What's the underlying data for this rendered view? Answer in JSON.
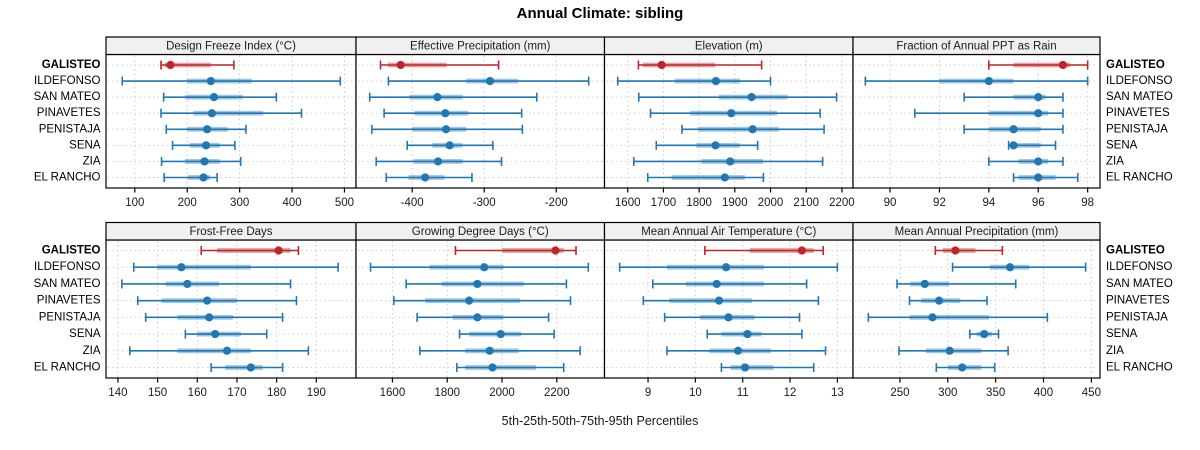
{
  "title": "Annual Climate: sibling",
  "caption": "5th-25th-50th-75th-95th Percentiles",
  "stations": [
    "GALISTEO",
    "ILDEFONSO",
    "SAN MATEO",
    "PINAVETES",
    "PENISTAJA",
    "SENA",
    "ZIA",
    "EL RANCHO"
  ],
  "highlight_station": "GALISTEO",
  "percentile_labels": [
    "5th",
    "25th",
    "50th",
    "75th",
    "95th"
  ],
  "colors": {
    "highlight": "#bf2427",
    "normal": "#1f77b4",
    "strip_bg": "#f0f0f0",
    "panel_border": "#000000",
    "grid": "#c9c9c9",
    "text": "#1a1a1a"
  },
  "chart_data": {
    "type": "dotplot",
    "subtype": "percentile-whisker-panels",
    "layout": "2 rows x 4 cols",
    "value_order": [
      "p5",
      "p25",
      "p50",
      "p75",
      "p95"
    ],
    "panels": [
      {
        "title": "Design Freeze Index (°C)",
        "row": 0,
        "col": 0,
        "xlim": [
          45,
          522
        ],
        "ticks": [
          100,
          200,
          300,
          400,
          500
        ],
        "series": [
          {
            "name": "GALISTEO",
            "values": [
              150,
              157,
              168,
              245,
              289
            ]
          },
          {
            "name": "ILDEFONSO",
            "values": [
              76,
              200,
              245,
              323,
              492
            ]
          },
          {
            "name": "SAN MATEO",
            "values": [
              155,
              196,
              251,
              306,
              370
            ]
          },
          {
            "name": "PINAVETES",
            "values": [
              150,
              212,
              247,
              345,
              418
            ]
          },
          {
            "name": "PENISTAJA",
            "values": [
              160,
              200,
              238,
              277,
              312
            ]
          },
          {
            "name": "SENA",
            "values": [
              172,
              205,
              236,
              262,
              291
            ]
          },
          {
            "name": "ZIA",
            "values": [
              151,
              196,
              233,
              262,
              302
            ]
          },
          {
            "name": "EL RANCHO",
            "values": [
              156,
              201,
              231,
              243,
              257
            ]
          }
        ]
      },
      {
        "title": "Effective Precipitation (mm)",
        "row": 0,
        "col": 1,
        "xlim": [
          -478,
          -133
        ],
        "ticks": [
          -400,
          -300,
          -200
        ],
        "series": [
          {
            "name": "GALISTEO",
            "values": [
              -444,
              -434,
              -416,
              -352,
              -280
            ]
          },
          {
            "name": "ILDEFONSO",
            "values": [
              -433,
              -325,
              -292,
              -253,
              -155
            ]
          },
          {
            "name": "SAN MATEO",
            "values": [
              -459,
              -404,
              -365,
              -330,
              -227
            ]
          },
          {
            "name": "PINAVETES",
            "values": [
              -439,
              -397,
              -354,
              -322,
              -248
            ]
          },
          {
            "name": "PENISTAJA",
            "values": [
              -456,
              -400,
              -353,
              -325,
              -247
            ]
          },
          {
            "name": "SENA",
            "values": [
              -407,
              -372,
              -348,
              -330,
              -288
            ]
          },
          {
            "name": "ZIA",
            "values": [
              -450,
              -398,
              -364,
              -330,
              -276
            ]
          },
          {
            "name": "EL RANCHO",
            "values": [
              -436,
              -405,
              -382,
              -355,
              -317
            ]
          }
        ]
      },
      {
        "title": "Elevation (m)",
        "row": 0,
        "col": 2,
        "xlim": [
          1535,
          2231
        ],
        "ticks": [
          1600,
          1700,
          1800,
          1900,
          2000,
          2100,
          2200
        ],
        "series": [
          {
            "name": "GALISTEO",
            "values": [
              1630,
              1642,
              1695,
              1845,
              1975
            ]
          },
          {
            "name": "ILDEFONSO",
            "values": [
              1572,
              1732,
              1847,
              1914,
              2000
            ]
          },
          {
            "name": "SAN MATEO",
            "values": [
              1631,
              1855,
              1947,
              2048,
              2185
            ]
          },
          {
            "name": "PINAVETES",
            "values": [
              1664,
              1775,
              1890,
              2018,
              2139
            ]
          },
          {
            "name": "PENISTAJA",
            "values": [
              1752,
              1797,
              1950,
              2023,
              2150
            ]
          },
          {
            "name": "SENA",
            "values": [
              1680,
              1792,
              1846,
              1914,
              1964
            ]
          },
          {
            "name": "ZIA",
            "values": [
              1617,
              1806,
              1887,
              1979,
              2146
            ]
          },
          {
            "name": "EL RANCHO",
            "values": [
              1656,
              1723,
              1872,
              1928,
              1980
            ]
          }
        ]
      },
      {
        "title": "Fraction of Annual PPT as Rain",
        "row": 0,
        "col": 3,
        "xlim": [
          88.5,
          98.5
        ],
        "ticks": [
          90,
          92,
          94,
          96,
          98
        ],
        "series": [
          {
            "name": "GALISTEO",
            "values": [
              94,
              95,
              97,
              97.3,
              98
            ]
          },
          {
            "name": "ILDEFONSO",
            "values": [
              89,
              92,
              94,
              95,
              98
            ]
          },
          {
            "name": "SAN MATEO",
            "values": [
              93,
              95,
              96,
              96.3,
              97
            ]
          },
          {
            "name": "PINAVETES",
            "values": [
              91,
              94,
              96,
              96.4,
              97
            ]
          },
          {
            "name": "PENISTAJA",
            "values": [
              93,
              94,
              95,
              96.1,
              97
            ]
          },
          {
            "name": "SENA",
            "values": [
              94.8,
              94.9,
              95,
              96.1,
              96.7
            ]
          },
          {
            "name": "ZIA",
            "values": [
              94,
              95.2,
              96,
              96.4,
              97
            ]
          },
          {
            "name": "EL RANCHO",
            "values": [
              95,
              95.2,
              96,
              96.7,
              97.6
            ]
          }
        ]
      },
      {
        "title": "Frost-Free Days",
        "row": 1,
        "col": 0,
        "xlim": [
          137,
          200
        ],
        "ticks": [
          140,
          150,
          160,
          170,
          180,
          190
        ],
        "series": [
          {
            "name": "GALISTEO",
            "values": [
              161,
              165,
              180.5,
              183.5,
              185.5
            ]
          },
          {
            "name": "ILDEFONSO",
            "values": [
              144,
              150,
              156,
              173.5,
              195.5
            ]
          },
          {
            "name": "SAN MATEO",
            "values": [
              141,
              152,
              157.5,
              165.5,
              183.5
            ]
          },
          {
            "name": "PINAVETES",
            "values": [
              145,
              151,
              162.5,
              170,
              185
            ]
          },
          {
            "name": "PENISTAJA",
            "values": [
              147,
              155,
              163,
              169,
              181.5
            ]
          },
          {
            "name": "SENA",
            "values": [
              157,
              160,
              164.5,
              171,
              177.5
            ]
          },
          {
            "name": "ZIA",
            "values": [
              143,
              155,
              167.5,
              173.5,
              188
            ]
          },
          {
            "name": "EL RANCHO",
            "values": [
              163.5,
              167,
              173.5,
              176.5,
              181.5
            ]
          }
        ]
      },
      {
        "title": "Growing Degree Days (°C)",
        "row": 1,
        "col": 1,
        "xlim": [
          1467,
          2374
        ],
        "ticks": [
          1600,
          1800,
          2000,
          2200
        ],
        "series": [
          {
            "name": "GALISTEO",
            "values": [
              1830,
              2000,
              2195,
              2225,
              2270
            ]
          },
          {
            "name": "ILDEFONSO",
            "values": [
              1520,
              1735,
              1935,
              2005,
              2315
            ]
          },
          {
            "name": "SAN MATEO",
            "values": [
              1650,
              1780,
              1910,
              2080,
              2235
            ]
          },
          {
            "name": "PINAVETES",
            "values": [
              1605,
              1720,
              1880,
              2065,
              2250
            ]
          },
          {
            "name": "PENISTAJA",
            "values": [
              1690,
              1820,
              1910,
              2005,
              2170
            ]
          },
          {
            "name": "SENA",
            "values": [
              1845,
              1880,
              1995,
              2070,
              2190
            ]
          },
          {
            "name": "ZIA",
            "values": [
              1700,
              1865,
              1955,
              2060,
              2285
            ]
          },
          {
            "name": "EL RANCHO",
            "values": [
              1835,
              1865,
              1965,
              2125,
              2225
            ]
          }
        ]
      },
      {
        "title": "Mean Annual Air Temperature (°C)",
        "row": 1,
        "col": 2,
        "xlim": [
          8.08,
          13.33
        ],
        "ticks": [
          9,
          10,
          11,
          12,
          13
        ],
        "series": [
          {
            "name": "GALISTEO",
            "values": [
              10.2,
              11.15,
              12.25,
              12.5,
              12.7
            ]
          },
          {
            "name": "ILDEFONSO",
            "values": [
              8.4,
              9.4,
              10.65,
              11.45,
              13.0
            ]
          },
          {
            "name": "SAN MATEO",
            "values": [
              9.1,
              9.8,
              10.45,
              11.45,
              12.35
            ]
          },
          {
            "name": "PINAVETES",
            "values": [
              8.9,
              9.45,
              10.5,
              11.2,
              12.6
            ]
          },
          {
            "name": "PENISTAJA",
            "values": [
              9.35,
              10.1,
              10.7,
              11.25,
              12.2
            ]
          },
          {
            "name": "SENA",
            "values": [
              10.25,
              10.55,
              11.1,
              11.4,
              12.25
            ]
          },
          {
            "name": "ZIA",
            "values": [
              9.4,
              10.3,
              10.9,
              11.6,
              12.75
            ]
          },
          {
            "name": "EL RANCHO",
            "values": [
              10.55,
              10.75,
              11.05,
              11.65,
              12.5
            ]
          }
        ]
      },
      {
        "title": "Mean Annual Precipitation (mm)",
        "row": 1,
        "col": 3,
        "xlim": [
          201,
          459
        ],
        "ticks": [
          250,
          300,
          350,
          400,
          450
        ],
        "series": [
          {
            "name": "GALISTEO",
            "values": [
              287,
              295,
              308,
              329,
              357
            ]
          },
          {
            "name": "ILDEFONSO",
            "values": [
              305,
              344,
              365,
              385,
              444
            ]
          },
          {
            "name": "SAN MATEO",
            "values": [
              247,
              261,
              276,
              301,
              371
            ]
          },
          {
            "name": "PINAVETES",
            "values": [
              260,
              272,
              291,
              313,
              341
            ]
          },
          {
            "name": "PENISTAJA",
            "values": [
              217,
              260,
              284,
              343,
              404
            ]
          },
          {
            "name": "SENA",
            "values": [
              323,
              330,
              338,
              346,
              353
            ]
          },
          {
            "name": "ZIA",
            "values": [
              249,
              277,
              302,
              335,
              363
            ]
          },
          {
            "name": "EL RANCHO",
            "values": [
              288,
              300,
              315,
              335,
              349
            ]
          }
        ]
      }
    ]
  }
}
